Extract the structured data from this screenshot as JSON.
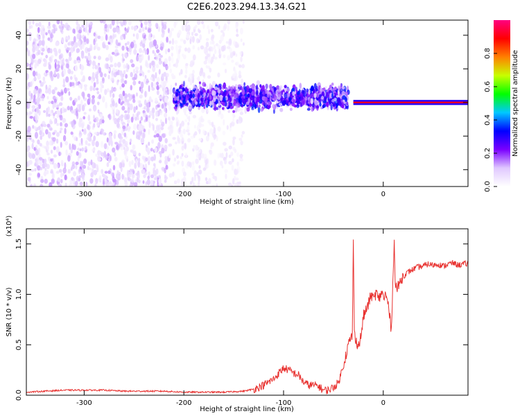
{
  "page": {
    "title": "C2E6.2023.294.13.34.G21"
  },
  "chart_data": [
    {
      "type": "heatmap",
      "title": "C2E6.2023.294.13.34.G21",
      "xlabel": "Height of straight line (km)",
      "ylabel": "Frequency (Hz)",
      "xlim": [
        -358,
        85
      ],
      "ylim": [
        -50,
        49
      ],
      "x_ticks": [
        {
          "value": -300,
          "label": "-300"
        },
        {
          "value": -200,
          "label": "-200"
        },
        {
          "value": -100,
          "label": "-100"
        },
        {
          "value": 0,
          "label": "0"
        }
      ],
      "y_ticks": [
        {
          "value": -40,
          "label": "-40"
        },
        {
          "value": -20,
          "label": "-20"
        },
        {
          "value": 0,
          "label": "0"
        },
        {
          "value": 20,
          "label": "20"
        },
        {
          "value": 40,
          "label": "40"
        }
      ],
      "colorbar": {
        "label": "Normalized spectral amplitude",
        "range": [
          0,
          1
        ],
        "ticks": [
          {
            "value": 0.0,
            "label": "0.0"
          },
          {
            "value": 0.2,
            "label": "0.2"
          },
          {
            "value": 0.4,
            "label": "0.4"
          },
          {
            "value": 0.6,
            "label": "0.6"
          },
          {
            "value": 0.8,
            "label": "0.8"
          }
        ],
        "colors": [
          "#ffffff",
          "#e0c8ff",
          "#7a00ff",
          "#0000ff",
          "#00c8ff",
          "#00ff00",
          "#c8ff00",
          "#ff8000",
          "#ff0000",
          "#ff0080"
        ]
      },
      "regions": [
        {
          "x_range": [
            -358,
            -215
          ],
          "y_range": [
            -50,
            49
          ],
          "amplitude": 0.08,
          "density": "high"
        },
        {
          "x_range": [
            -215,
            -140
          ],
          "y_range": [
            -50,
            49
          ],
          "amplitude": 0.04,
          "density": "medium"
        },
        {
          "x_range": [
            -210,
            -35
          ],
          "y_center": 3,
          "y_spread": 6,
          "amplitude": 0.2,
          "density": "high"
        },
        {
          "x_range": [
            -30,
            85
          ],
          "y_center": 0,
          "y_spread": 1.5,
          "amplitude": 0.92,
          "density": "line"
        }
      ]
    },
    {
      "type": "line",
      "title": "",
      "xlabel": "Height of straight line (km)",
      "ylabel": "SNR (10 * v/v)",
      "y_multiplier": "(x10⁴)",
      "xlim": [
        -358,
        85
      ],
      "ylim": [
        0,
        1.65
      ],
      "color": "#e8312f",
      "x_ticks": [
        {
          "value": -300,
          "label": "-300"
        },
        {
          "value": -200,
          "label": "-200"
        },
        {
          "value": -100,
          "label": "-100"
        },
        {
          "value": 0,
          "label": "0"
        }
      ],
      "y_ticks": [
        {
          "value": 0.0,
          "label": "0.0"
        },
        {
          "value": 0.5,
          "label": "0.5"
        },
        {
          "value": 1.0,
          "label": "1.0"
        },
        {
          "value": 1.5,
          "label": "1.5"
        }
      ],
      "x": [
        -358,
        -340,
        -320,
        -300,
        -280,
        -260,
        -240,
        -220,
        -200,
        -180,
        -160,
        -140,
        -130,
        -120,
        -110,
        -100,
        -95,
        -90,
        -85,
        -80,
        -75,
        -70,
        -65,
        -60,
        -55,
        -50,
        -45,
        -40,
        -35,
        -31,
        -30,
        -29,
        -27,
        -25,
        -22,
        -20,
        -17,
        -15,
        -12,
        -10,
        -7,
        -5,
        -3,
        -1,
        0,
        2,
        5,
        8,
        10,
        11,
        12,
        14,
        16,
        18,
        20,
        25,
        30,
        35,
        40,
        45,
        50,
        55,
        60,
        65,
        70,
        75,
        80,
        85
      ],
      "y": [
        0.03,
        0.04,
        0.05,
        0.05,
        0.05,
        0.04,
        0.04,
        0.04,
        0.03,
        0.03,
        0.03,
        0.04,
        0.06,
        0.1,
        0.16,
        0.27,
        0.25,
        0.22,
        0.2,
        0.13,
        0.1,
        0.1,
        0.09,
        0.05,
        0.05,
        0.08,
        0.12,
        0.3,
        0.5,
        0.6,
        1.55,
        0.6,
        0.55,
        0.48,
        0.6,
        0.78,
        0.85,
        0.9,
        1.0,
        0.95,
        1.02,
        0.95,
        0.98,
        1.05,
        0.95,
        1.0,
        0.9,
        0.65,
        1.2,
        1.6,
        1.1,
        1.05,
        1.1,
        1.15,
        1.18,
        1.22,
        1.25,
        1.27,
        1.28,
        1.3,
        1.29,
        1.3,
        1.28,
        1.3,
        1.31,
        1.29,
        1.3,
        1.3
      ]
    }
  ]
}
